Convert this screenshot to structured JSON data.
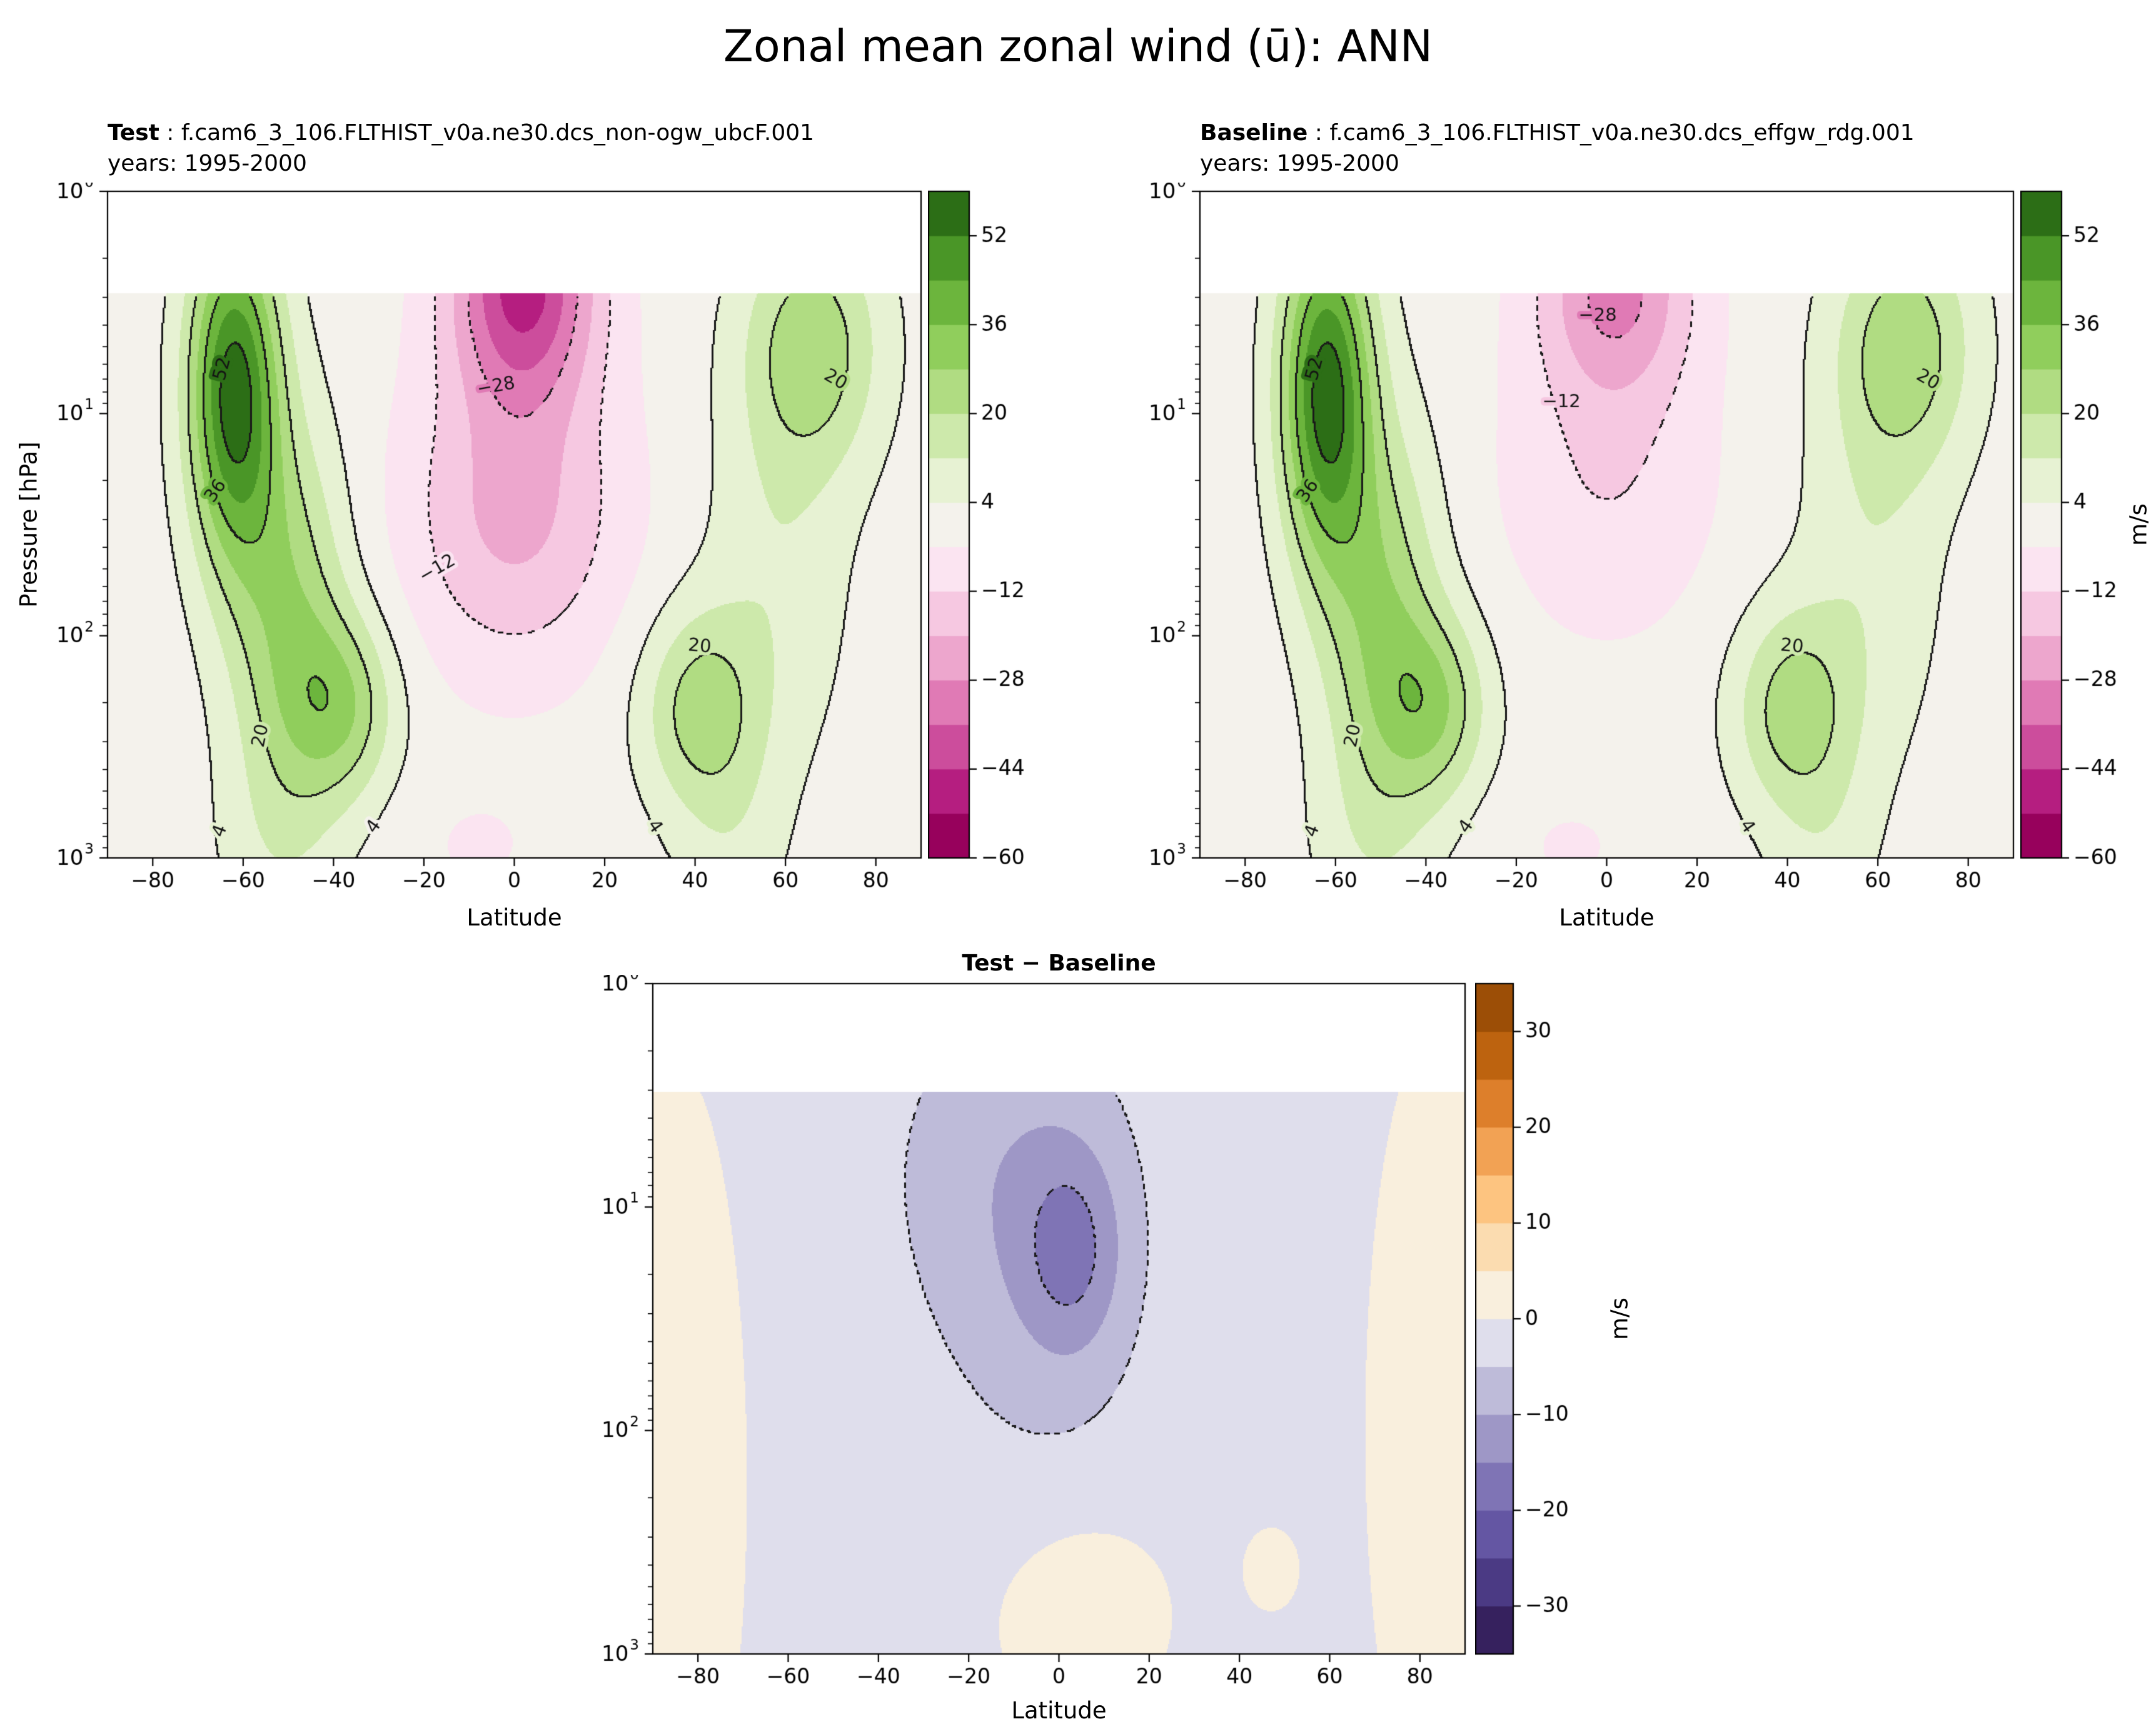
{
  "title": "Zonal mean zonal wind (ū): ANN",
  "chart_data": [
    {
      "type": "filled-contour",
      "panel": "test",
      "title_bold": "Test",
      "title_rest": " : f.cam6_3_106.FLTHIST_v0a.ne30.dcs_non-ogw_ubcF.001",
      "subtitle": "years: 1995-2000",
      "xlabel": "Latitude",
      "ylabel": "Pressure [hPa]",
      "colorbar_label": "",
      "xlim": [
        -90,
        90
      ],
      "x_ticks": [
        -80,
        -60,
        -40,
        -20,
        0,
        20,
        40,
        60,
        80
      ],
      "ylog_exponents": [
        0,
        1,
        2,
        3
      ],
      "white_top_logp": 0.46,
      "levels_min": -60,
      "levels_max": 60,
      "levels_step": 8,
      "colorbar_ticks": [
        52,
        36,
        20,
        4,
        -12,
        -28,
        -44,
        -60
      ],
      "colors": [
        "#97015c",
        "#b51e80",
        "#cc4d9c",
        "#e07ab5",
        "#eda6cd",
        "#f6c8e1",
        "#fbe4f1",
        "#f4f2ec",
        "#e7f2d3",
        "#cde9ab",
        "#b0dc82",
        "#90ce5c",
        "#6cb53d",
        "#4a9627",
        "#2c6e16"
      ],
      "contours_solid": [
        4,
        20,
        36,
        52
      ],
      "contours_dashed": [
        -28,
        -12
      ],
      "base": 0,
      "field": [
        {
          "a": 55,
          "lt": -62,
          "lp": 0.9,
          "sl": 10,
          "sp": 0.75
        },
        {
          "a": 26,
          "lt": -50,
          "lp": 1.9,
          "sl": 13,
          "sp": 0.85
        },
        {
          "a": 24,
          "lt": -38,
          "lp": 2.32,
          "sl": 12,
          "sp": 0.42
        },
        {
          "a": 23,
          "lt": 41,
          "lp": 2.33,
          "sl": 13,
          "sp": 0.45
        },
        {
          "a": 25,
          "lt": 66,
          "lp": 0.7,
          "sl": 15,
          "sp": 0.55
        },
        {
          "a": 10,
          "lt": 58,
          "lp": 1.7,
          "sl": 16,
          "sp": 0.9
        },
        {
          "a": -46,
          "lt": 2,
          "lp": 0.4,
          "sl": 16,
          "sp": 0.55
        },
        {
          "a": -22,
          "lt": 0,
          "lp": 1.45,
          "sl": 24,
          "sp": 0.7
        },
        {
          "a": -4.5,
          "lt": -8,
          "lp": 2.95,
          "sl": 18,
          "sp": 0.3
        },
        {
          "a": 7,
          "lt": -52,
          "lp": 2.95,
          "sl": 14,
          "sp": 0.5
        },
        {
          "a": 7,
          "lt": 48,
          "lp": 2.95,
          "sl": 12,
          "sp": 0.5
        }
      ],
      "contour_labels": [
        {
          "t": "52",
          "lt": -64.5,
          "lp": 0.8,
          "r": -75
        },
        {
          "t": "36",
          "lt": -66,
          "lp": 1.35,
          "r": -55
        },
        {
          "t": "20",
          "lt": -56,
          "lp": 2.45,
          "r": -78
        },
        {
          "t": "20",
          "lt": 41,
          "lp": 2.05,
          "r": 5
        },
        {
          "t": "20",
          "lt": 71,
          "lp": 0.85,
          "r": 30
        },
        {
          "t": "4",
          "lt": -65,
          "lp": 2.88,
          "r": -70
        },
        {
          "t": "4",
          "lt": -31,
          "lp": 2.86,
          "r": -55
        },
        {
          "t": "4",
          "lt": 31,
          "lp": 2.86,
          "r": 55
        },
        {
          "t": "−12",
          "lt": -17,
          "lp": 1.7,
          "r": -30
        },
        {
          "t": "−28",
          "lt": -4,
          "lp": 0.88,
          "r": -10
        }
      ]
    },
    {
      "type": "filled-contour",
      "panel": "baseline",
      "title_bold": "Baseline",
      "title_rest": " : f.cam6_3_106.FLTHIST_v0a.ne30.dcs_effgw_rdg.001",
      "subtitle": "years: 1995-2000",
      "xlabel": "Latitude",
      "ylabel": "",
      "colorbar_label": "m/s",
      "xlim": [
        -90,
        90
      ],
      "x_ticks": [
        -80,
        -60,
        -40,
        -20,
        0,
        20,
        40,
        60,
        80
      ],
      "ylog_exponents": [
        0,
        1,
        2,
        3
      ],
      "white_top_logp": 0.46,
      "levels_min": -60,
      "levels_max": 60,
      "levels_step": 8,
      "colorbar_ticks": [
        52,
        36,
        20,
        4,
        -12,
        -28,
        -44,
        -60
      ],
      "colors": [
        "#97015c",
        "#b51e80",
        "#cc4d9c",
        "#e07ab5",
        "#eda6cd",
        "#f6c8e1",
        "#fbe4f1",
        "#f4f2ec",
        "#e7f2d3",
        "#cde9ab",
        "#b0dc82",
        "#90ce5c",
        "#6cb53d",
        "#4a9627",
        "#2c6e16"
      ],
      "contours_solid": [
        4,
        20,
        36,
        52
      ],
      "contours_dashed": [
        -28,
        -12
      ],
      "base": 0,
      "field": [
        {
          "a": 55,
          "lt": -62,
          "lp": 0.9,
          "sl": 10,
          "sp": 0.75
        },
        {
          "a": 26,
          "lt": -50,
          "lp": 1.9,
          "sl": 13,
          "sp": 0.85
        },
        {
          "a": 24,
          "lt": -38,
          "lp": 2.32,
          "sl": 12,
          "sp": 0.42
        },
        {
          "a": 23,
          "lt": 41,
          "lp": 2.33,
          "sl": 13,
          "sp": 0.45
        },
        {
          "a": 25,
          "lt": 66,
          "lp": 0.7,
          "sl": 15,
          "sp": 0.55
        },
        {
          "a": 10,
          "lt": 58,
          "lp": 1.7,
          "sl": 16,
          "sp": 0.9
        },
        {
          "a": -29,
          "lt": 2,
          "lp": 0.42,
          "sl": 17,
          "sp": 0.5
        },
        {
          "a": -11.5,
          "lt": 0,
          "lp": 1.3,
          "sl": 24,
          "sp": 0.7
        },
        {
          "a": -4.5,
          "lt": -8,
          "lp": 2.95,
          "sl": 18,
          "sp": 0.3
        },
        {
          "a": 7,
          "lt": -52,
          "lp": 2.95,
          "sl": 14,
          "sp": 0.5
        },
        {
          "a": 7,
          "lt": 48,
          "lp": 2.95,
          "sl": 12,
          "sp": 0.5
        }
      ],
      "contour_labels": [
        {
          "t": "52",
          "lt": -64.5,
          "lp": 0.8,
          "r": -75
        },
        {
          "t": "36",
          "lt": -66,
          "lp": 1.35,
          "r": -55
        },
        {
          "t": "20",
          "lt": -56,
          "lp": 2.45,
          "r": -78
        },
        {
          "t": "20",
          "lt": 41,
          "lp": 2.05,
          "r": 5
        },
        {
          "t": "20",
          "lt": 71,
          "lp": 0.85,
          "r": 30
        },
        {
          "t": "4",
          "lt": -65,
          "lp": 2.88,
          "r": -70
        },
        {
          "t": "4",
          "lt": -31,
          "lp": 2.86,
          "r": -55
        },
        {
          "t": "4",
          "lt": 31,
          "lp": 2.86,
          "r": 55
        },
        {
          "t": "−12",
          "lt": -10,
          "lp": 0.95,
          "r": 0
        },
        {
          "t": "−28",
          "lt": -2,
          "lp": 0.56,
          "r": 0
        }
      ]
    },
    {
      "type": "filled-contour",
      "panel": "difference",
      "title_bold": "Test − Baseline",
      "title_rest": "",
      "subtitle": "",
      "xlabel": "Latitude",
      "ylabel": "",
      "colorbar_label": "m/s",
      "xlim": [
        -90,
        90
      ],
      "x_ticks": [
        -80,
        -60,
        -40,
        -20,
        0,
        20,
        40,
        60,
        80
      ],
      "ylog_exponents": [
        0,
        1,
        2,
        3
      ],
      "white_top_logp": 0.485,
      "levels_min": -35,
      "levels_max": 35,
      "levels_step": 5,
      "colorbar_ticks": [
        30,
        20,
        10,
        0,
        -10,
        -20,
        -30
      ],
      "colors": [
        "#36215e",
        "#4b3a84",
        "#6456a3",
        "#7f74b5",
        "#9e97c6",
        "#bebbd9",
        "#dfdeec",
        "#f9efdd",
        "#fbdcb0",
        "#fdc480",
        "#f2a254",
        "#dd7f2b",
        "#bd630f",
        "#9c4e06"
      ],
      "contours_solid": [],
      "contours_dashed": [
        -15,
        -5
      ],
      "base": -1,
      "field": [
        {
          "a": -8,
          "lt": -10,
          "lp": 0.85,
          "sl": 28,
          "sp": 0.85
        },
        {
          "a": -10,
          "lt": 3,
          "lp": 1.2,
          "sl": 11,
          "sp": 0.45
        },
        {
          "a": -3,
          "lt": -2,
          "lp": 1.8,
          "sl": 26,
          "sp": 0.8
        },
        {
          "a": 4.5,
          "lt": -85,
          "lp": 2.2,
          "sl": 13,
          "sp": 1.5
        },
        {
          "a": 4.5,
          "lt": 85,
          "lp": 2.0,
          "sl": 14,
          "sp": 1.5
        },
        {
          "a": 4.2,
          "lt": 5,
          "lp": 2.78,
          "sl": 18,
          "sp": 0.45
        },
        {
          "a": 3,
          "lt": 47,
          "lp": 2.62,
          "sl": 6,
          "sp": 0.18
        }
      ],
      "contour_labels": []
    }
  ]
}
